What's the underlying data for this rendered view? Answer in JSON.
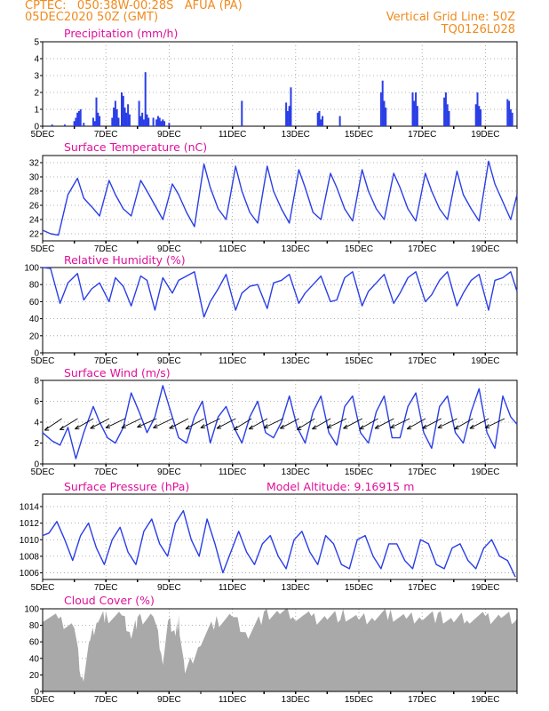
{
  "header": {
    "line1": "CPTEC:   050:38W-00:28S   AFUA (PA)",
    "line2": "05DEC2020 50Z (GMT)",
    "right1": "Vertical Grid Line: 50Z",
    "right2": "TQ0126L028"
  },
  "x_ticks": [
    "5DEC",
    "7DEC",
    "9DEC",
    "11DEC",
    "13DEC",
    "15DEC",
    "17DEC",
    "19DEC"
  ],
  "colors": {
    "line": "#2a3ee6",
    "bar": "#2a3ee6",
    "cloud": "#a9a9a9",
    "title": "#e0109a",
    "header": "#f08a1e"
  },
  "chart_data": [
    {
      "type": "bar",
      "title": "Precipitation (mm/h)",
      "ylim": [
        0,
        5
      ],
      "yticks": [
        "0",
        "1",
        "2",
        "3",
        "4",
        "5"
      ],
      "x_unit": "days since 5DEC",
      "x": [
        0.3,
        0.7,
        1.0,
        1.05,
        1.1,
        1.15,
        1.2,
        1.3,
        1.6,
        1.65,
        1.7,
        1.75,
        1.8,
        2.2,
        2.25,
        2.3,
        2.35,
        2.4,
        2.5,
        2.55,
        2.6,
        2.65,
        2.7,
        2.75,
        3.05,
        3.1,
        3.15,
        3.2,
        3.25,
        3.3,
        3.35,
        3.5,
        3.6,
        3.65,
        3.7,
        3.75,
        3.8,
        3.85,
        4.0,
        6.3,
        7.7,
        7.75,
        7.8,
        7.85,
        8.7,
        8.75,
        8.8,
        8.85,
        9.4,
        10.7,
        10.75,
        10.8,
        10.85,
        11.7,
        11.75,
        11.8,
        11.85,
        12.7,
        12.75,
        12.8,
        12.85,
        13.7,
        13.75,
        13.8,
        13.85,
        14.7,
        14.75,
        14.8,
        14.85
      ],
      "y": [
        0.1,
        0.1,
        0.3,
        0.5,
        0.8,
        0.9,
        1.0,
        0.2,
        0.5,
        0.3,
        1.7,
        0.8,
        0.6,
        0.5,
        1.1,
        1.5,
        1.0,
        0.5,
        2.0,
        1.8,
        1.1,
        0.8,
        1.3,
        0.7,
        1.5,
        0.6,
        0.8,
        0.4,
        3.2,
        0.7,
        0.5,
        0.5,
        0.4,
        0.6,
        0.5,
        0.3,
        0.4,
        0.3,
        0.2,
        1.5,
        1.4,
        0.9,
        1.2,
        2.3,
        0.8,
        0.9,
        0.4,
        0.6,
        0.6,
        2.0,
        2.7,
        1.5,
        1.1,
        2.0,
        1.5,
        2.0,
        1.2,
        1.7,
        2.0,
        1.3,
        0.9,
        1.3,
        2.0,
        1.2,
        1.0,
        1.6,
        1.5,
        1.0,
        0.8
      ]
    },
    {
      "type": "line",
      "title": "Surface Temperature (nC)",
      "ylim": [
        21,
        33
      ],
      "yticks": [
        "22",
        "24",
        "26",
        "28",
        "30",
        "32"
      ],
      "x_unit": "days since 5DEC",
      "x": [
        0.0,
        0.25,
        0.5,
        0.8,
        1.1,
        1.3,
        1.55,
        1.8,
        2.1,
        2.3,
        2.55,
        2.8,
        3.1,
        3.3,
        3.55,
        3.8,
        4.1,
        4.3,
        4.55,
        4.8,
        5.1,
        5.3,
        5.55,
        5.8,
        6.1,
        6.3,
        6.55,
        6.8,
        7.1,
        7.3,
        7.55,
        7.8,
        8.1,
        8.3,
        8.55,
        8.8,
        9.1,
        9.3,
        9.55,
        9.8,
        10.1,
        10.3,
        10.55,
        10.8,
        11.1,
        11.3,
        11.55,
        11.8,
        12.1,
        12.3,
        12.55,
        12.8,
        13.1,
        13.3,
        13.55,
        13.8,
        14.1,
        14.3,
        14.55,
        14.8,
        15.0
      ],
      "y": [
        22.5,
        22.0,
        21.8,
        27.5,
        29.8,
        27.0,
        25.8,
        24.5,
        29.5,
        27.5,
        25.5,
        24.5,
        29.5,
        28.0,
        26.0,
        24.0,
        29.0,
        27.5,
        25.0,
        23.0,
        31.8,
        28.5,
        25.5,
        24.0,
        31.5,
        28.0,
        25.0,
        23.5,
        31.5,
        28.0,
        25.5,
        23.5,
        31.0,
        28.5,
        25.0,
        24.0,
        30.5,
        28.5,
        25.5,
        23.8,
        31.0,
        28.0,
        25.5,
        24.0,
        30.5,
        28.5,
        25.5,
        23.8,
        30.5,
        28.0,
        25.5,
        24.0,
        30.8,
        27.5,
        25.5,
        23.8,
        32.2,
        29.0,
        26.5,
        24.0,
        27.5
      ]
    },
    {
      "type": "line",
      "title": "Relative Humidity (%)",
      "ylim": [
        0,
        100
      ],
      "yticks": [
        "0",
        "20",
        "40",
        "60",
        "80",
        "100"
      ],
      "x_unit": "days since 5DEC",
      "x": [
        0.0,
        0.25,
        0.55,
        0.8,
        1.1,
        1.3,
        1.55,
        1.8,
        2.1,
        2.3,
        2.55,
        2.8,
        3.1,
        3.3,
        3.55,
        3.8,
        4.1,
        4.3,
        4.55,
        4.8,
        5.1,
        5.3,
        5.55,
        5.8,
        6.1,
        6.3,
        6.55,
        6.8,
        7.1,
        7.3,
        7.55,
        7.8,
        8.1,
        8.3,
        8.55,
        8.8,
        9.1,
        9.3,
        9.55,
        9.8,
        10.1,
        10.3,
        10.55,
        10.8,
        11.1,
        11.3,
        11.55,
        11.8,
        12.1,
        12.3,
        12.55,
        12.8,
        13.1,
        13.3,
        13.55,
        13.8,
        14.1,
        14.3,
        14.55,
        14.8,
        15.0
      ],
      "y": [
        100,
        99,
        58,
        82,
        93,
        62,
        75,
        82,
        60,
        88,
        78,
        55,
        90,
        85,
        50,
        88,
        70,
        85,
        90,
        95,
        42,
        60,
        75,
        92,
        50,
        70,
        78,
        80,
        52,
        82,
        85,
        92,
        58,
        70,
        80,
        90,
        60,
        62,
        88,
        95,
        55,
        72,
        82,
        92,
        58,
        70,
        88,
        95,
        60,
        68,
        85,
        95,
        55,
        70,
        85,
        92,
        50,
        85,
        88,
        95,
        72
      ]
    },
    {
      "type": "line",
      "title": "Surface Wind (m/s)",
      "ylim": [
        0,
        8
      ],
      "yticks": [
        "0",
        "2",
        "4",
        "6",
        "8"
      ],
      "x_unit": "days since 5DEC",
      "x": [
        0.0,
        0.3,
        0.55,
        0.8,
        1.05,
        1.3,
        1.6,
        1.8,
        2.05,
        2.3,
        2.55,
        2.8,
        3.05,
        3.3,
        3.55,
        3.8,
        4.05,
        4.3,
        4.55,
        4.8,
        5.05,
        5.3,
        5.55,
        5.8,
        6.05,
        6.3,
        6.55,
        6.8,
        7.05,
        7.3,
        7.55,
        7.8,
        8.05,
        8.3,
        8.55,
        8.8,
        9.05,
        9.3,
        9.55,
        9.8,
        10.05,
        10.3,
        10.55,
        10.8,
        11.05,
        11.3,
        11.55,
        11.8,
        12.05,
        12.3,
        12.55,
        12.8,
        13.05,
        13.3,
        13.55,
        13.8,
        14.05,
        14.3,
        14.55,
        14.8,
        15.0
      ],
      "y": [
        3.0,
        2.2,
        1.8,
        3.5,
        0.5,
        3.0,
        5.5,
        4.0,
        2.5,
        2.0,
        3.5,
        6.8,
        5.0,
        3.0,
        4.5,
        7.5,
        5.0,
        2.5,
        2.0,
        4.5,
        6.0,
        2.0,
        4.5,
        5.5,
        3.5,
        2.0,
        4.5,
        6.0,
        3.0,
        2.5,
        4.0,
        6.5,
        3.5,
        2.0,
        5.0,
        6.5,
        3.0,
        1.8,
        5.5,
        6.5,
        3.0,
        2.0,
        5.0,
        6.5,
        2.5,
        2.5,
        5.5,
        6.8,
        3.0,
        1.5,
        5.5,
        6.5,
        3.0,
        2.0,
        5.0,
        7.2,
        3.0,
        1.5,
        6.5,
        4.5,
        3.8
      ],
      "vector_times": [
        0.55,
        1.05,
        1.55,
        2.05,
        2.55,
        3.05,
        3.55,
        4.05,
        4.55,
        5.05,
        5.55,
        6.05,
        6.55,
        7.05,
        7.55,
        8.05,
        8.55,
        9.05,
        9.55,
        10.05,
        10.55,
        11.05,
        11.55,
        12.05,
        12.55,
        13.05,
        13.55,
        14.05,
        14.55
      ],
      "vector_dirs_deg": [
        230,
        225,
        220,
        215,
        210,
        210,
        205,
        210,
        215,
        220,
        210,
        215,
        225,
        220,
        210,
        215,
        225,
        220,
        210,
        215,
        220,
        215,
        210,
        220,
        215,
        210,
        220,
        215,
        210
      ]
    },
    {
      "type": "line",
      "title": "Surface Pressure (hPa)",
      "annotation": "Model Altitude: 9.16915 m",
      "ylim": [
        1005.2,
        1015.5
      ],
      "yticks": [
        "1006",
        "1008",
        "1010",
        "1012",
        "1014"
      ],
      "x_unit": "days since 5DEC",
      "x": [
        0.0,
        0.2,
        0.45,
        0.7,
        0.95,
        1.2,
        1.45,
        1.7,
        1.95,
        2.2,
        2.45,
        2.7,
        2.95,
        3.2,
        3.45,
        3.7,
        3.95,
        4.2,
        4.45,
        4.7,
        4.95,
        5.2,
        5.45,
        5.7,
        5.95,
        6.2,
        6.45,
        6.7,
        6.95,
        7.2,
        7.45,
        7.7,
        7.95,
        8.2,
        8.45,
        8.7,
        8.95,
        9.2,
        9.45,
        9.7,
        9.95,
        10.2,
        10.45,
        10.7,
        10.95,
        11.2,
        11.45,
        11.7,
        11.95,
        12.2,
        12.45,
        12.7,
        12.95,
        13.2,
        13.45,
        13.7,
        13.95,
        14.2,
        14.45,
        14.7,
        14.95
      ],
      "y": [
        1010.5,
        1010.8,
        1012.2,
        1010.0,
        1007.5,
        1010.5,
        1012.0,
        1009.0,
        1007.0,
        1010.0,
        1011.5,
        1008.5,
        1007.0,
        1011.0,
        1012.5,
        1009.5,
        1008.0,
        1012.0,
        1013.5,
        1010.0,
        1008.0,
        1012.5,
        1009.5,
        1006.0,
        1008.5,
        1011.0,
        1008.5,
        1007.0,
        1009.5,
        1010.5,
        1008.0,
        1006.5,
        1010.0,
        1011.0,
        1008.5,
        1007.0,
        1010.5,
        1009.5,
        1007.0,
        1006.5,
        1010.0,
        1010.5,
        1008.0,
        1006.5,
        1009.5,
        1009.5,
        1007.5,
        1006.5,
        1010.0,
        1009.5,
        1007.0,
        1006.5,
        1009.0,
        1009.5,
        1007.5,
        1006.5,
        1009.0,
        1010.0,
        1008.0,
        1007.5,
        1005.5
      ]
    },
    {
      "type": "area",
      "title": "Cloud Cover (%)",
      "ylim": [
        0,
        100
      ],
      "yticks": [
        "0",
        "20",
        "40",
        "60",
        "80",
        "100"
      ],
      "x_unit": "days since 5DEC",
      "x": [
        0.0,
        0.5,
        1.0,
        1.25,
        1.5,
        1.75,
        2.0,
        2.5,
        2.8,
        3.0,
        3.5,
        3.8,
        4.0,
        4.2,
        4.3,
        4.5,
        5.0,
        5.5,
        6.0,
        6.5,
        7.0,
        7.5,
        8.0,
        8.5,
        9.0,
        9.5,
        10.0,
        10.5,
        11.0,
        11.5,
        12.0,
        12.5,
        13.0,
        13.5,
        14.0,
        14.5,
        15.0
      ],
      "y": [
        92,
        85,
        80,
        10,
        60,
        88,
        90,
        92,
        70,
        85,
        92,
        40,
        85,
        70,
        85,
        20,
        60,
        85,
        90,
        70,
        92,
        95,
        93,
        88,
        90,
        92,
        85,
        90,
        93,
        88,
        92,
        90,
        85,
        90,
        88,
        92,
        88
      ]
    }
  ]
}
